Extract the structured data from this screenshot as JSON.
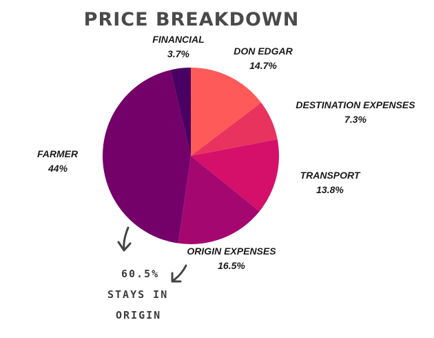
{
  "chart_data": {
    "type": "pie",
    "title": "PRICE BREAKDOWN",
    "slices": [
      {
        "label": "DON EDGAR",
        "value": 14.7,
        "value_label": "14.7%",
        "color": "#ff5a5a"
      },
      {
        "label": "DESTINATION EXPENSES",
        "value": 7.3,
        "value_label": "7.3%",
        "color": "#e8335f"
      },
      {
        "label": "TRANSPORT",
        "value": 13.8,
        "value_label": "13.8%",
        "color": "#d4106a"
      },
      {
        "label": "ORIGIN EXPENSES",
        "value": 16.5,
        "value_label": "16.5%",
        "color": "#a40870"
      },
      {
        "label": "FARMER",
        "value": 44,
        "value_label": "44%",
        "color": "#740069"
      },
      {
        "label": "FINANCIAL",
        "value": 3.7,
        "value_label": "3.7%",
        "color": "#4a0062"
      }
    ],
    "annotation": {
      "lines": [
        "60.5%",
        "STAYS IN",
        "ORIGIN"
      ]
    }
  }
}
